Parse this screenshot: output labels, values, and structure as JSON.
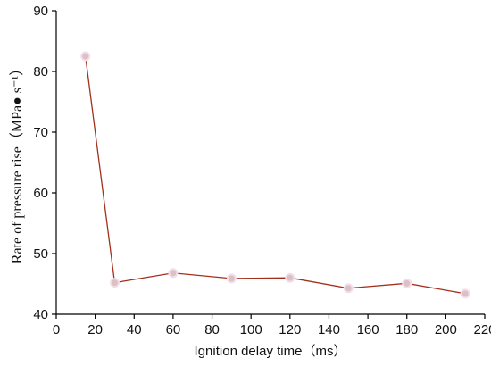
{
  "chart_data": {
    "type": "line",
    "x_label": "Ignition delay time（ms）",
    "y_label": "Rate of pressure rise（MPa● s⁻¹）",
    "x": [
      15,
      30,
      60,
      90,
      120,
      150,
      180,
      210
    ],
    "series": [
      {
        "color": "#a3301c",
        "marker_color": "#dcc1c1",
        "values": [
          82.5,
          45.2,
          46.8,
          45.9,
          46.0,
          44.3,
          45.1,
          43.4
        ]
      }
    ],
    "xlim": [
      0,
      220
    ],
    "xticks": [
      0,
      20,
      40,
      60,
      80,
      100,
      120,
      140,
      160,
      180,
      200,
      220
    ],
    "ylim": [
      40,
      90
    ],
    "yticks": [
      40,
      50,
      60,
      70,
      80,
      90
    ]
  }
}
